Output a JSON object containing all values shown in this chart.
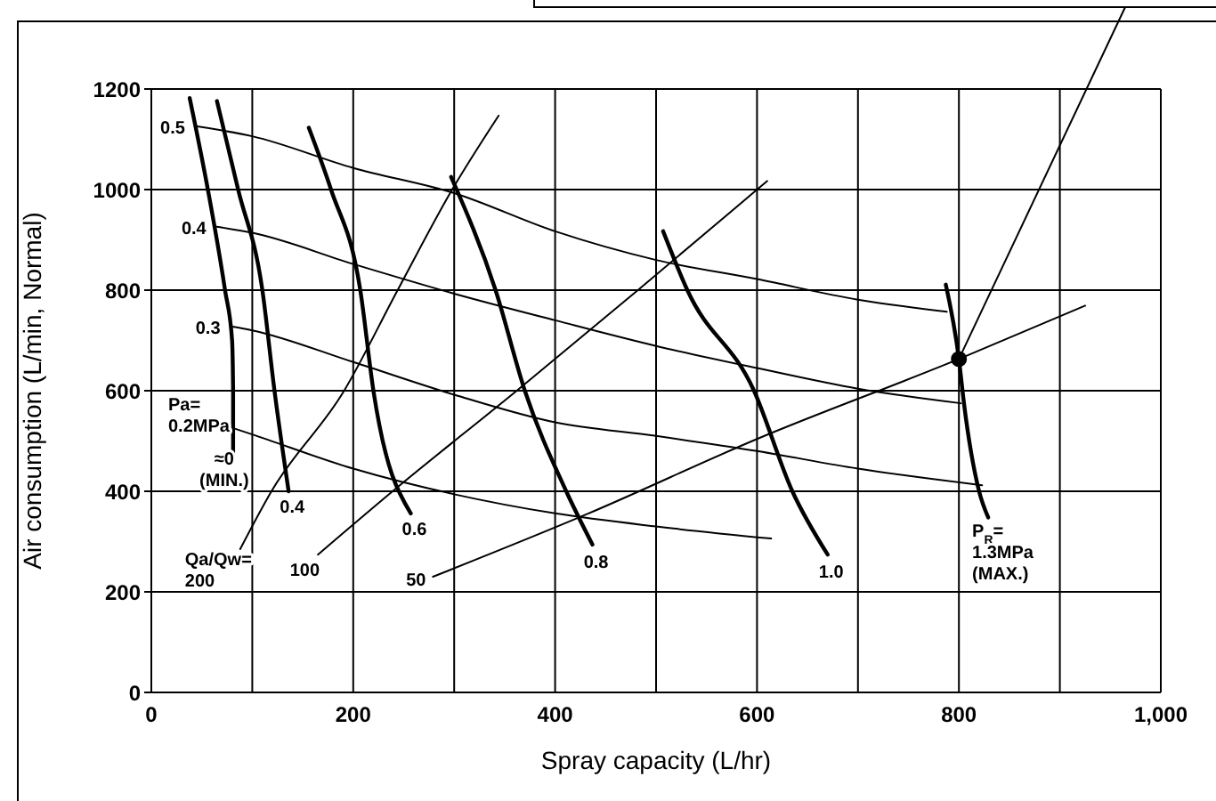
{
  "chart_data": {
    "type": "line",
    "xlabel": "Spray capacity (L/hr)",
    "ylabel": "Air consumption (L/min, Normal)",
    "xlim": [
      0,
      1000
    ],
    "ylim": [
      0,
      1200
    ],
    "xticks": [
      0,
      {
        "value": 100,
        "label": null
      },
      200,
      {
        "value": 300,
        "label": null
      },
      400,
      {
        "value": 500,
        "label": null
      },
      600,
      {
        "value": 700,
        "label": null
      },
      800,
      {
        "value": 900,
        "label": null
      },
      {
        "value": 1000,
        "label": "1,000"
      }
    ],
    "yticks": [
      0,
      200,
      400,
      600,
      800,
      1000,
      1200
    ],
    "grid": true,
    "series": [
      {
        "name": "0.5",
        "color": "#000000",
        "x": [
          44,
          100,
          200,
          300,
          400,
          500,
          600,
          700,
          788
        ],
        "values": [
          1126,
          1106,
          1043,
          993,
          917,
          860,
          822,
          781,
          757
        ]
      },
      {
        "name": "0.4",
        "color": "#000000",
        "x": [
          65,
          100,
          200,
          300,
          400,
          500,
          600,
          700,
          802
        ],
        "values": [
          926,
          914,
          852,
          793,
          740,
          689,
          645,
          604,
          575
        ]
      },
      {
        "name": "0.3",
        "color": "#000000",
        "x": [
          79,
          100,
          200,
          300,
          400,
          500,
          600,
          700,
          823
        ],
        "values": [
          728,
          720,
          657,
          592,
          537,
          510,
          480,
          445,
          412
        ]
      },
      {
        "name": "Pa=\n0.2MPa",
        "color": "#000000",
        "x": [
          82,
          100,
          200,
          300,
          400,
          500,
          614
        ],
        "values": [
          525,
          513,
          445,
          394,
          356,
          330,
          306
        ]
      },
      {
        "name": "≈0\n(MIN.)",
        "color": "#000000",
        "x": [
          38,
          56,
          73,
          80,
          81,
          81
        ],
        "values": [
          1182,
          1000,
          800,
          700,
          600,
          474
        ]
      },
      {
        "name": "0.4",
        "color": "#000000",
        "x": [
          65,
          86,
          110,
          122,
          136
        ],
        "values": [
          1176,
          1000,
          800,
          600,
          400
        ]
      },
      {
        "name": "0.6",
        "color": "#000000",
        "x": [
          156,
          178,
          207,
          220,
          257
        ],
        "values": [
          1123,
          1000,
          800,
          600,
          356
        ]
      },
      {
        "name": "0.8",
        "color": "#000000",
        "x": [
          297,
          341,
          370,
          411,
          437
        ],
        "values": [
          1025,
          800,
          600,
          400,
          294
        ]
      },
      {
        "name": "1.0",
        "color": "#000000",
        "x": [
          507,
          531,
          597,
          635,
          670
        ],
        "values": [
          917,
          800,
          600,
          400,
          274
        ]
      },
      {
        "name": "P$_{R}$=\n1.3MPa\n(MAX.)",
        "color": "#000000",
        "x": [
          787,
          800,
          805,
          820,
          829
        ],
        "values": [
          811,
          663,
          575,
          400,
          348
        ]
      },
      {
        "name": "Qa/Qw=\n200",
        "color": "#000000",
        "x": [
          88,
          119,
          191,
          244,
          298,
          344
        ],
        "values": [
          285,
          400,
          600,
          800,
          1000,
          1147
        ]
      },
      {
        "name": "100",
        "color": "#000000",
        "x": [
          165,
          239,
          362,
          482,
          600,
          610
        ],
        "values": [
          274,
          400,
          600,
          800,
          1000,
          1017
        ]
      },
      {
        "name": "50",
        "color": "#000000",
        "x": [
          279,
          432,
          600,
          800,
          925
        ],
        "values": [
          230,
          355,
          504,
          663,
          769
        ]
      },
      {
        "type": "scatter",
        "color": "#000000",
        "x": [
          800
        ],
        "values": [
          663
        ]
      }
    ]
  }
}
